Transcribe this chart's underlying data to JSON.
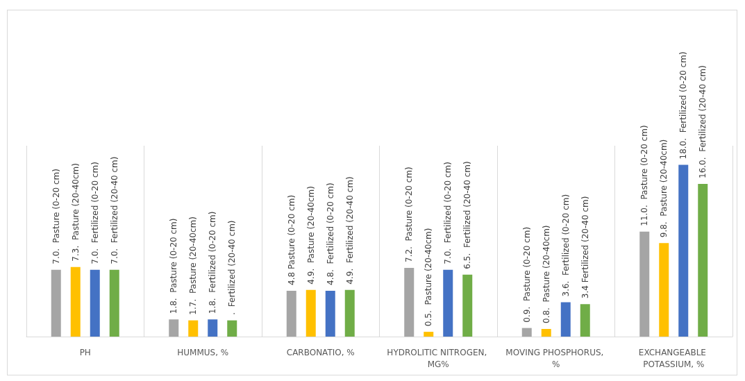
{
  "chart_data": {
    "type": "bar",
    "categories": [
      "PH",
      "HUMMUS, %",
      "CARBONATIO, %",
      "HYDROLITIC NITROGEN, MG%",
      "MOVING PHOSPHORUS, %",
      "EXCHANGEABLE POTASSIUM, %"
    ],
    "series": [
      {
        "color": "#a5a5a5",
        "values": [
          7.0,
          1.8,
          4.8,
          7.2,
          0.9,
          11.0
        ],
        "value_labels": [
          "7.0.  Pasture (0-20 cm)",
          "1.8.  Pasture (0-20 cm)",
          "4.8 Pasture (0-20 cm)",
          "7.2.  Pasture (0-20 cm)",
          "0.9.  Pasture (0-20 cm)",
          "11.0.  Pasture (0-20 cm)"
        ]
      },
      {
        "color": "#ffc000",
        "values": [
          7.3,
          1.7,
          4.9,
          0.5,
          0.8,
          9.8
        ],
        "value_labels": [
          "7.3.  Pasture (20-40cm)",
          "1.7.  Pasture (20-40cm)",
          "4.9.  Pasture (20-40cm)",
          "0.5.  Pasture (20-40cm)",
          "0.8.  Pasture (20-40cm)",
          "9.8.  Pasture (20-40cm)"
        ]
      },
      {
        "color": "#4472c4",
        "values": [
          7.0,
          1.8,
          4.8,
          7.0,
          3.6,
          18.0
        ],
        "value_labels": [
          "7.0.  Fertilized (0-20 cm)",
          "1.8.  Fertilized (0-20 cm)",
          "4.8.  Fertilized (0-20 cm)",
          "7.0.  Fertilized (0-20 cm)",
          "3.6.  Fertilized (0-20 cm)",
          "18.0.  Fertilized (0-20 cm)"
        ]
      },
      {
        "color": "#70ad47",
        "values": [
          7.0,
          1.7,
          4.9,
          6.5,
          3.4,
          16.0
        ],
        "value_labels": [
          "7.0.  Fertilized (20-40 cm)",
          ".  Fertilized (20-40 cm)",
          "4.9.  Fertilized (20-40 cm)",
          "6.5.  Fertilized (20-40 cm)",
          "3.4 Fertilized (20-40 cm)",
          "16.0.  Fertilized (20-40 cm)"
        ]
      }
    ],
    "ylim": [
      0,
      20
    ],
    "grid": "x"
  }
}
